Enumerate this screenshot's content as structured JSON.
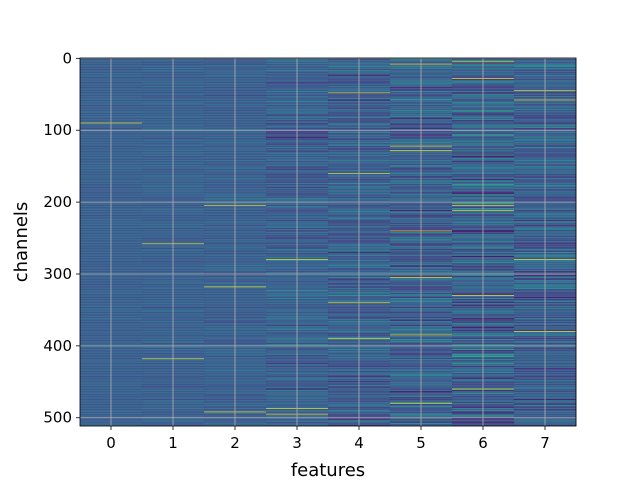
{
  "chart_data": {
    "type": "heatmap",
    "title": "",
    "xlabel": "features",
    "ylabel": "channels",
    "x_ticks": [
      0,
      1,
      2,
      3,
      4,
      5,
      6,
      7
    ],
    "y_ticks": [
      0,
      100,
      200,
      300,
      400,
      500
    ],
    "xlim": [
      -0.5,
      7.5
    ],
    "ylim": [
      511.5,
      -0.5
    ],
    "rows": 512,
    "columns": 8,
    "grid": true,
    "colormap": "viridis",
    "column_variation": [
      0.04,
      0.06,
      0.08,
      0.14,
      0.18,
      0.22,
      0.25,
      0.2
    ],
    "bright_rows": [
      {
        "feature": 0,
        "channel": 90
      },
      {
        "feature": 1,
        "channel": 258
      },
      {
        "feature": 1,
        "channel": 418
      },
      {
        "feature": 2,
        "channel": 205
      },
      {
        "feature": 2,
        "channel": 318
      },
      {
        "feature": 2,
        "channel": 492
      },
      {
        "feature": 3,
        "channel": 280
      },
      {
        "feature": 3,
        "channel": 487
      },
      {
        "feature": 3,
        "channel": 495
      },
      {
        "feature": 4,
        "channel": 48
      },
      {
        "feature": 4,
        "channel": 160
      },
      {
        "feature": 4,
        "channel": 340
      },
      {
        "feature": 4,
        "channel": 390
      },
      {
        "feature": 5,
        "channel": 8
      },
      {
        "feature": 5,
        "channel": 122
      },
      {
        "feature": 5,
        "channel": 128
      },
      {
        "feature": 5,
        "channel": 240
      },
      {
        "feature": 5,
        "channel": 305
      },
      {
        "feature": 5,
        "channel": 385
      },
      {
        "feature": 5,
        "channel": 480
      },
      {
        "feature": 6,
        "channel": 5
      },
      {
        "feature": 6,
        "channel": 28
      },
      {
        "feature": 6,
        "channel": 205
      },
      {
        "feature": 6,
        "channel": 212
      },
      {
        "feature": 6,
        "channel": 330
      },
      {
        "feature": 6,
        "channel": 460
      },
      {
        "feature": 7,
        "channel": 45
      },
      {
        "feature": 7,
        "channel": 58
      },
      {
        "feature": 7,
        "channel": 280
      },
      {
        "feature": 7,
        "channel": 380
      }
    ],
    "dark_rows": [
      {
        "feature": 3,
        "channel": 110
      },
      {
        "feature": 3,
        "channel": 460
      },
      {
        "feature": 4,
        "channel": 270
      },
      {
        "feature": 5,
        "channel": 212
      },
      {
        "feature": 5,
        "channel": 165
      },
      {
        "feature": 6,
        "channel": 100
      },
      {
        "feature": 6,
        "channel": 445
      },
      {
        "feature": 7,
        "channel": 302
      },
      {
        "feature": 7,
        "channel": 475
      }
    ]
  }
}
